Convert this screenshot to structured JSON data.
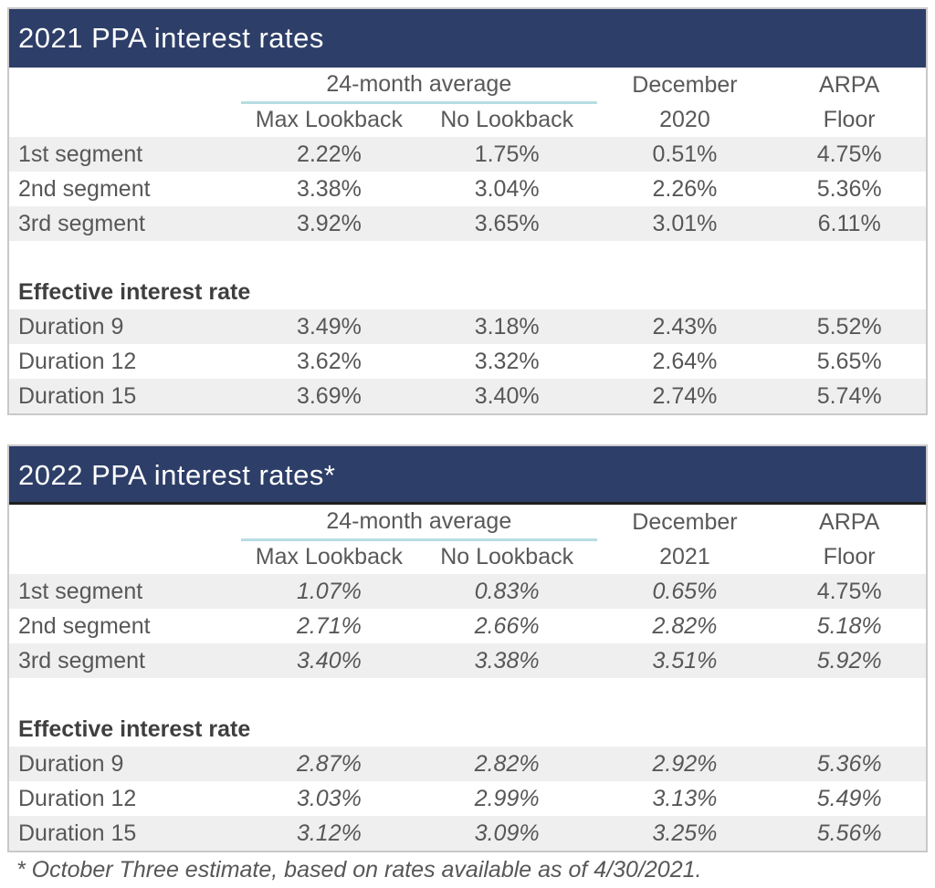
{
  "colors": {
    "navy_band": "#2d3e68",
    "row_stripe": "#efefef",
    "outer_border": "#c9c9c9",
    "spanner_underline_teal": "#b7dde3",
    "body_text": "#575757"
  },
  "footnote": "* October Three estimate, based on rates available as of 4/30/2021.",
  "tables": [
    {
      "title": "2021 PPA interest rates",
      "header": {
        "spanner": "24-month average",
        "sub_left": "Max Lookback",
        "sub_right": "No Lookback",
        "month_line1": "December",
        "month_line2": "2020",
        "arpa_line1": "ARPA",
        "arpa_line2": "Floor"
      },
      "section_label": "Effective interest rate",
      "segment_rows": [
        {
          "label": "1st segment",
          "max_lookback": "2.22%",
          "no_lookback": "1.75%",
          "december": "0.51%",
          "arpa_floor": "4.75%"
        },
        {
          "label": "2nd segment",
          "max_lookback": "3.38%",
          "no_lookback": "3.04%",
          "december": "2.26%",
          "arpa_floor": "5.36%"
        },
        {
          "label": "3rd segment",
          "max_lookback": "3.92%",
          "no_lookback": "3.65%",
          "december": "3.01%",
          "arpa_floor": "6.11%"
        }
      ],
      "duration_rows": [
        {
          "label": "Duration 9",
          "max_lookback": "3.49%",
          "no_lookback": "3.18%",
          "december": "2.43%",
          "arpa_floor": "5.52%"
        },
        {
          "label": "Duration 12",
          "max_lookback": "3.62%",
          "no_lookback": "3.32%",
          "december": "2.64%",
          "arpa_floor": "5.65%"
        },
        {
          "label": "Duration 15",
          "max_lookback": "3.69%",
          "no_lookback": "3.40%",
          "december": "2.74%",
          "arpa_floor": "5.74%"
        }
      ]
    },
    {
      "title": "2022 PPA interest rates*",
      "header": {
        "spanner": "24-month average",
        "sub_left": "Max Lookback",
        "sub_right": "No Lookback",
        "month_line1": "December",
        "month_line2": "2021",
        "arpa_line1": "ARPA",
        "arpa_line2": "Floor"
      },
      "section_label": "Effective interest rate",
      "segment_rows": [
        {
          "label": "1st segment",
          "max_lookback": "1.07%",
          "no_lookback": "0.83%",
          "december": "0.65%",
          "arpa_floor": "4.75%"
        },
        {
          "label": "2nd segment",
          "max_lookback": "2.71%",
          "no_lookback": "2.66%",
          "december": "2.82%",
          "arpa_floor": "5.18%"
        },
        {
          "label": "3rd segment",
          "max_lookback": "3.40%",
          "no_lookback": "3.38%",
          "december": "3.51%",
          "arpa_floor": "5.92%"
        }
      ],
      "duration_rows": [
        {
          "label": "Duration 9",
          "max_lookback": "2.87%",
          "no_lookback": "2.82%",
          "december": "2.92%",
          "arpa_floor": "5.36%"
        },
        {
          "label": "Duration 12",
          "max_lookback": "3.03%",
          "no_lookback": "2.99%",
          "december": "3.13%",
          "arpa_floor": "5.49%"
        },
        {
          "label": "Duration 15",
          "max_lookback": "3.12%",
          "no_lookback": "3.09%",
          "december": "3.25%",
          "arpa_floor": "5.56%"
        }
      ]
    }
  ]
}
